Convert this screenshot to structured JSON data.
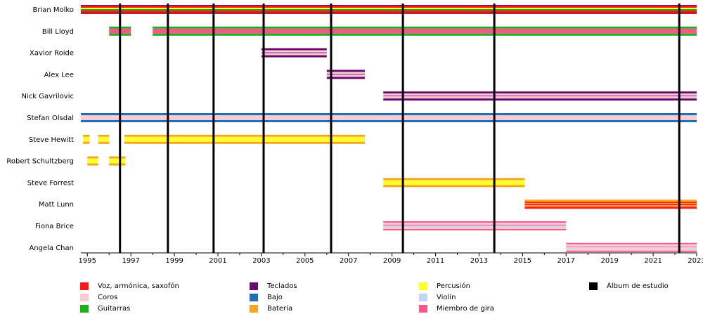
{
  "chart_data": {
    "type": "timeline",
    "title": "",
    "x_range": [
      1994.7,
      2023.0
    ],
    "x_ticks": [
      "1995",
      "1997",
      "1999",
      "2001",
      "2003",
      "2005",
      "2007",
      "2009",
      "2011",
      "2013",
      "2015",
      "2017",
      "2019",
      "2021",
      "2023"
    ],
    "x_tick_values": [
      1995,
      1997,
      1999,
      2001,
      2003,
      2005,
      2007,
      2009,
      2011,
      2013,
      2015,
      2017,
      2019,
      2021,
      2023
    ],
    "studio_albums": [
      1996.5,
      1998.7,
      2000.8,
      2003.1,
      2006.2,
      2009.5,
      2013.7,
      2022.2
    ],
    "members": [
      {
        "name": "Brian Molko",
        "bars": [
          {
            "start": 1994.7,
            "end": 2023.0,
            "roles": [
              "voice",
              "guitar",
              "keyboard"
            ]
          }
        ]
      },
      {
        "name": "Bill Lloyd",
        "bars": [
          {
            "start": 1996.0,
            "end": 1997.0,
            "roles": [
              "guitar",
              "tour"
            ]
          },
          {
            "start": 1998.0,
            "end": 2023.0,
            "roles": [
              "guitar",
              "tour"
            ]
          }
        ]
      },
      {
        "name": "Xavior Roide",
        "bars": [
          {
            "start": 2003.0,
            "end": 2006.0,
            "roles": [
              "keyboard",
              "backing"
            ]
          }
        ]
      },
      {
        "name": "Alex Lee",
        "bars": [
          {
            "start": 2006.0,
            "end": 2007.75,
            "roles": [
              "keyboard",
              "backing"
            ]
          }
        ]
      },
      {
        "name": "Nick Gavrilovic",
        "bars": [
          {
            "start": 2008.6,
            "end": 2023.0,
            "roles": [
              "keyboard",
              "backing"
            ]
          }
        ]
      },
      {
        "name": "Stefan Olsdal",
        "bars": [
          {
            "start": 1994.7,
            "end": 2023.0,
            "roles": [
              "bass",
              "backing"
            ]
          }
        ]
      },
      {
        "name": "Steve Hewitt",
        "bars": [
          {
            "start": 1994.8,
            "end": 1995.1,
            "roles": [
              "drums",
              "percussion"
            ]
          },
          {
            "start": 1995.5,
            "end": 1996.0,
            "roles": [
              "drums",
              "percussion"
            ]
          },
          {
            "start": 1996.7,
            "end": 2007.75,
            "roles": [
              "drums",
              "percussion"
            ]
          }
        ]
      },
      {
        "name": "Robert Schultzberg",
        "bars": [
          {
            "start": 1995.0,
            "end": 1995.5,
            "roles": [
              "drums",
              "percussion"
            ]
          },
          {
            "start": 1996.0,
            "end": 1996.75,
            "roles": [
              "drums",
              "percussion"
            ]
          }
        ]
      },
      {
        "name": "Steve Forrest",
        "bars": [
          {
            "start": 2008.6,
            "end": 2015.1,
            "roles": [
              "drums",
              "percussion"
            ]
          }
        ]
      },
      {
        "name": "Matt Lunn",
        "bars": [
          {
            "start": 2015.1,
            "end": 2023.0,
            "roles": [
              "drums",
              "voice"
            ]
          }
        ]
      },
      {
        "name": "Fiona Brice",
        "bars": [
          {
            "start": 2008.6,
            "end": 2017.0,
            "roles": [
              "violin",
              "backing",
              "tour"
            ]
          }
        ]
      },
      {
        "name": "Angela Chan",
        "bars": [
          {
            "start": 2017.0,
            "end": 2023.0,
            "roles": [
              "violin",
              "backing",
              "tour"
            ]
          }
        ]
      }
    ],
    "colors": {
      "voice": "#ff1a1a",
      "backing": "#f9cbd3",
      "guitar": "#19b319",
      "keyboard": "#6a0a6e",
      "bass": "#1f6fb8",
      "drums": "#f5a623",
      "percussion": "#ffff2a",
      "violin": "#c2d4f2",
      "tour": "#ff5588",
      "album": "#000000"
    }
  },
  "legend": [
    {
      "label": "Voz, armónica, saxofón",
      "color": "#ff1a1a"
    },
    {
      "label": "Coros",
      "color": "#f9cbd3"
    },
    {
      "label": "Guitarras",
      "color": "#19b319"
    },
    {
      "label": "Teclados",
      "color": "#6a0a6e"
    },
    {
      "label": "Bajo",
      "color": "#1f6fb8"
    },
    {
      "label": "Batería",
      "color": "#f5a623"
    },
    {
      "label": "Percusión",
      "color": "#ffff2a"
    },
    {
      "label": "Violín",
      "color": "#c2d4f2"
    },
    {
      "label": "Miembro de gira",
      "color": "#ff5588"
    },
    {
      "label": "Álbum de estudio",
      "color": "#000000"
    }
  ]
}
